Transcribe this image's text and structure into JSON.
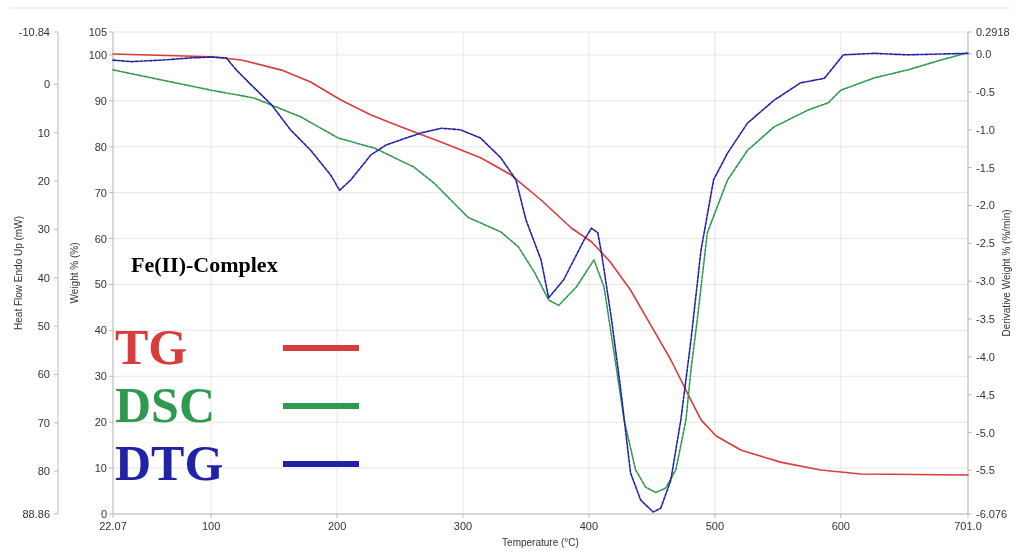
{
  "chart_data": {
    "type": "line",
    "title": "Fe(II)-Complex",
    "xlabel": "Temperature (°C)",
    "ylabel": "Weight % (%)",
    "y2label": "Derivative Weight % (%/min)",
    "y3label": "Heat Flow Endo Up (mW)",
    "xlim": [
      22.07,
      701.0
    ],
    "xticks": [
      22.07,
      100,
      200,
      300,
      400,
      500,
      600,
      {
        "value": 701.0,
        "label": "701.0"
      }
    ],
    "ylim": [
      0,
      105
    ],
    "yticks": [
      0,
      10,
      20,
      30,
      40,
      50,
      60,
      70,
      80,
      90,
      100,
      105
    ],
    "y2lim": [
      -6.076,
      0.2918
    ],
    "y2ticks": [
      -6.076,
      {
        "value": -5.5,
        "label": "-5.5"
      },
      {
        "value": -5,
        "label": "-5.0"
      },
      -4.5,
      {
        "value": -4,
        "label": "-4.0"
      },
      -3.5,
      {
        "value": -3,
        "label": "-3.0"
      },
      -2.5,
      {
        "value": -2,
        "label": "-2.0"
      },
      -1.5,
      {
        "value": -1,
        "label": "-1.0"
      },
      -0.5,
      {
        "value": 0,
        "label": "0.0"
      },
      0.2918
    ],
    "y3lim": [
      88.86,
      -10.84
    ],
    "y3ticks": [
      -10.84,
      0,
      10,
      20,
      30,
      40,
      50,
      60,
      70,
      80,
      88.86
    ],
    "grid": true,
    "legend": "bottom left",
    "series": [
      {
        "name": "TG",
        "color": "#d83c3c",
        "line_style": "solid",
        "x": [
          22.07,
          100,
          124,
          156,
          179,
          203,
          227,
          251,
          283,
          314,
          338,
          362,
          386,
          402,
          417,
          433,
          449,
          465,
          481,
          489,
          501,
          521,
          552,
          584,
          616,
          701
        ],
        "values": [
          100.2,
          99.6,
          98.9,
          96.7,
          94.1,
          90.2,
          86.9,
          84.3,
          81.0,
          77.6,
          73.9,
          68.4,
          62.3,
          59.3,
          54.9,
          48.8,
          41.2,
          33.6,
          24.8,
          20.5,
          17.0,
          13.9,
          11.3,
          9.6,
          8.7,
          8.5
        ]
      },
      {
        "name": "DSC",
        "color": "#2f9a4f",
        "axis": "y3",
        "line_style": "dashed",
        "x": [
          22.07,
          100,
          134,
          171,
          201,
          230,
          261,
          277,
          304,
          330,
          344,
          357,
          368,
          376,
          390,
          404,
          412,
          420,
          428,
          437,
          445,
          453,
          461,
          469,
          477,
          481,
          486,
          494,
          510,
          526,
          547,
          574,
          590,
          600,
          626,
          653,
          679,
          700
        ],
        "values": [
          -3.0,
          1.2,
          2.8,
          6.7,
          11.1,
          13.2,
          17.1,
          20.4,
          27.5,
          30.5,
          33.6,
          39.0,
          44.6,
          45.7,
          41.9,
          36.3,
          41.9,
          55.6,
          69.5,
          79.7,
          83.3,
          84.4,
          83.5,
          79.7,
          69.5,
          59.1,
          48.7,
          30.7,
          19.8,
          13.6,
          8.8,
          5.3,
          3.8,
          1.2,
          -1.3,
          -3.0,
          -5.0,
          -6.5
        ]
      },
      {
        "name": "DTG",
        "color": "#2222a8",
        "axis": "y2",
        "line_style": "dashed",
        "x": [
          22.07,
          36,
          60,
          84,
          100,
          112,
          120,
          132,
          148,
          163,
          179,
          195,
          202,
          211,
          227,
          239,
          251,
          267,
          283,
          298,
          314,
          330,
          342,
          350,
          362,
          368,
          380,
          396,
          402,
          407,
          410,
          418,
          425,
          433,
          441,
          451,
          457,
          465,
          473,
          481,
          489,
          499,
          510,
          526,
          547,
          568,
          587,
          602,
          626,
          653,
          701
        ],
        "values": [
          -0.08,
          -0.1,
          -0.08,
          -0.05,
          -0.04,
          -0.05,
          -0.21,
          -0.41,
          -0.67,
          -1.0,
          -1.27,
          -1.6,
          -1.8,
          -1.66,
          -1.33,
          -1.2,
          -1.13,
          -1.04,
          -0.98,
          -1.0,
          -1.11,
          -1.37,
          -1.66,
          -2.19,
          -2.72,
          -3.22,
          -2.98,
          -2.46,
          -2.3,
          -2.36,
          -2.63,
          -3.51,
          -4.4,
          -5.53,
          -5.89,
          -6.05,
          -6.0,
          -5.63,
          -4.83,
          -3.78,
          -2.59,
          -1.66,
          -1.31,
          -0.91,
          -0.61,
          -0.38,
          -0.32,
          -0.01,
          0.01,
          -0.01,
          0.01
        ]
      }
    ]
  }
}
